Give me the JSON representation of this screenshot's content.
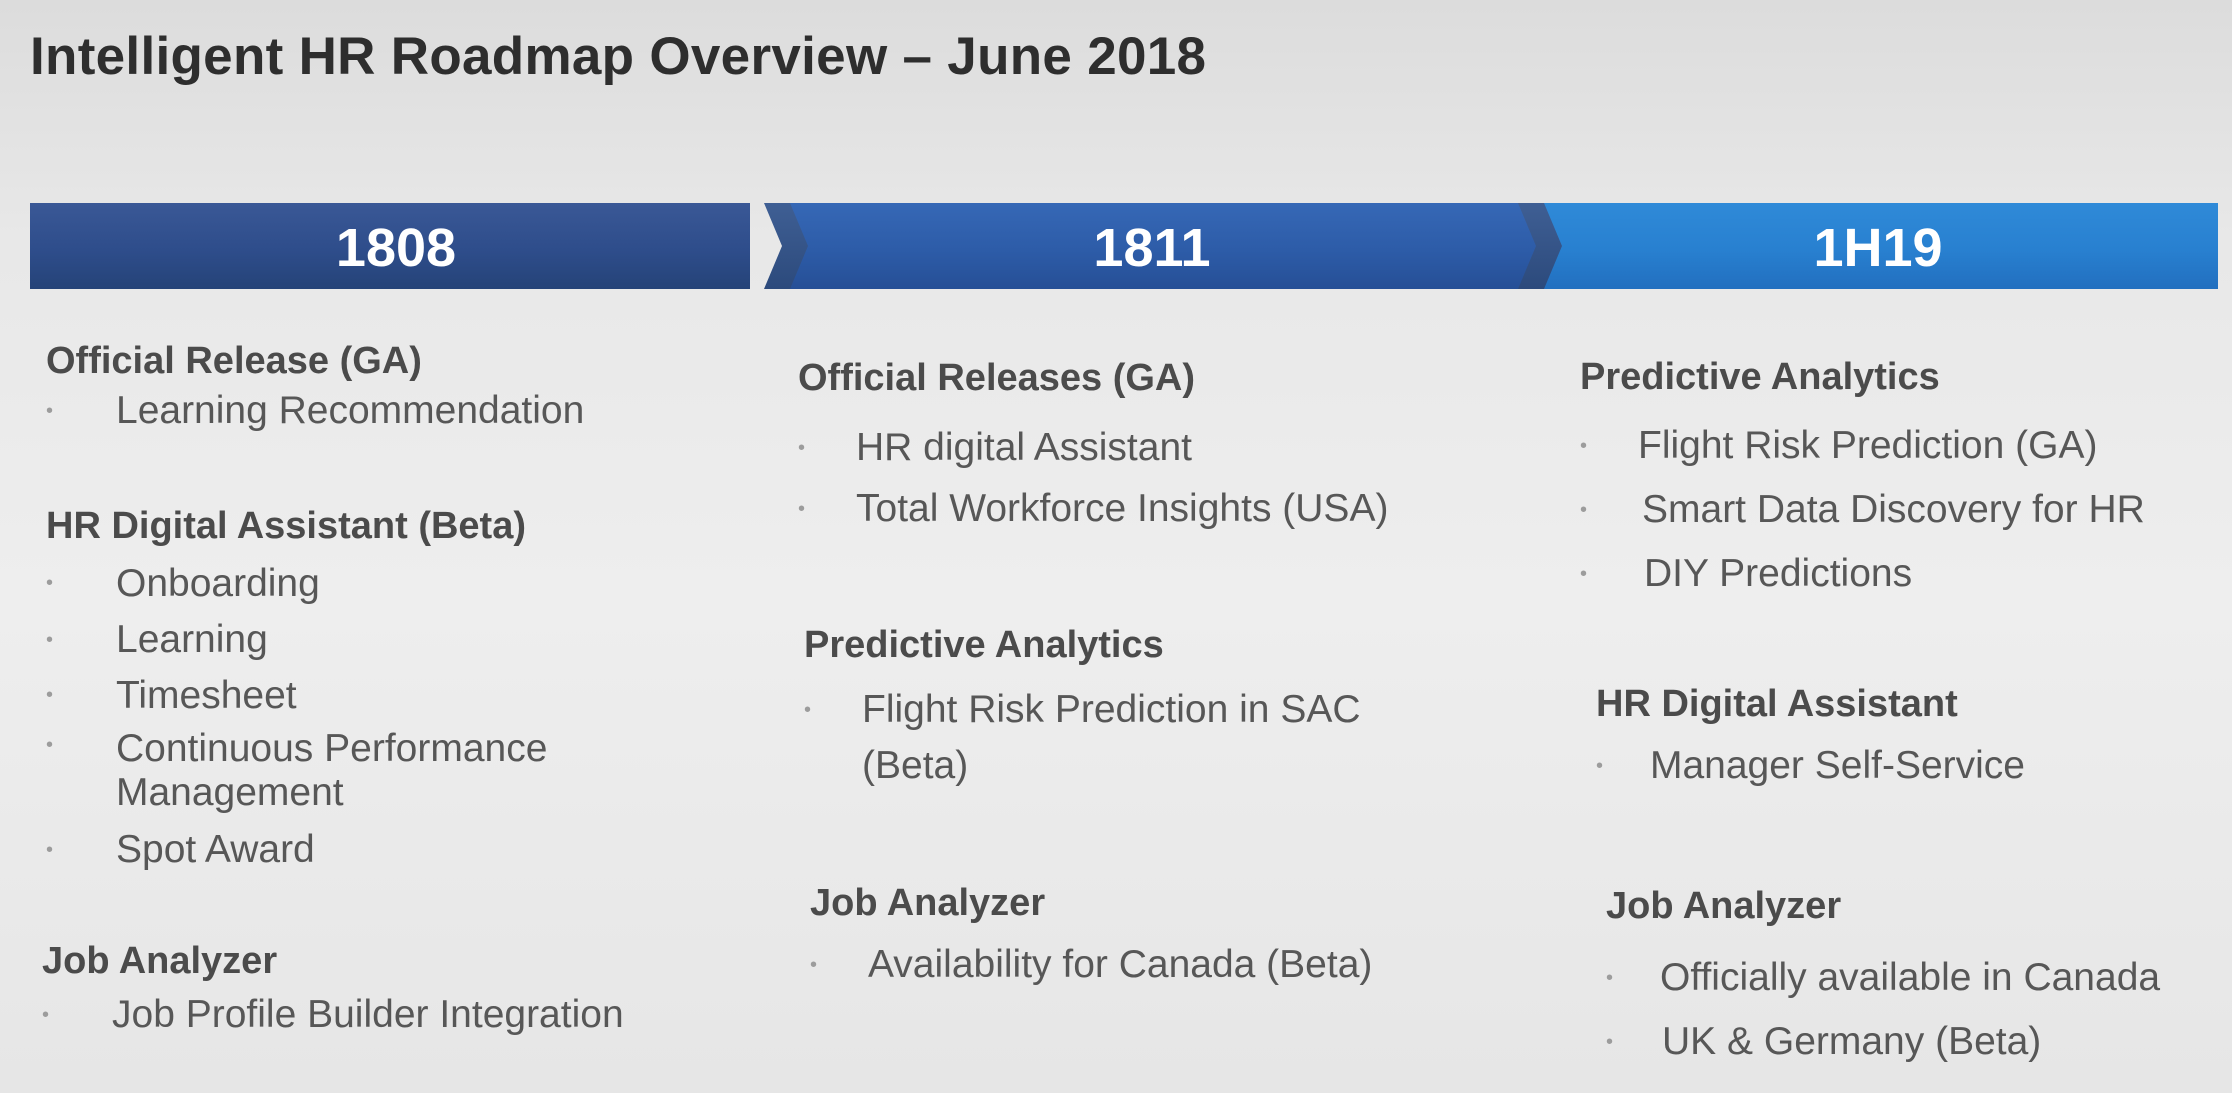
{
  "slide": {
    "title": "Intelligent HR Roadmap Overview – June 2018"
  },
  "timeline": [
    {
      "label": "1808",
      "color": "#2e4d8b",
      "sections": [
        {
          "heading": "Official Release (GA)",
          "items": [
            "Learning Recommendation"
          ]
        },
        {
          "heading": "HR Digital Assistant (Beta)",
          "items": [
            "Onboarding",
            "Learning",
            "Timesheet",
            "Continuous Performance Management",
            "Spot Award"
          ]
        },
        {
          "heading": "Job Analyzer",
          "items": [
            "Job Profile Builder Integration"
          ]
        }
      ]
    },
    {
      "label": "1811",
      "color": "#2d5ca8",
      "sections": [
        {
          "heading": "Official Releases (GA)",
          "items": [
            "HR digital Assistant",
            "Total Workforce Insights (USA)"
          ]
        },
        {
          "heading": "Predictive Analytics",
          "items": [
            "Flight Risk Prediction in SAC (Beta)"
          ]
        },
        {
          "heading": "Job Analyzer",
          "items": [
            "Availability for Canada (Beta)"
          ]
        }
      ]
    },
    {
      "label": "1H19",
      "color": "#2880d0",
      "sections": [
        {
          "heading": "Predictive Analytics",
          "items": [
            "Flight Risk Prediction (GA)",
            "Smart Data Discovery for HR",
            "DIY Predictions"
          ]
        },
        {
          "heading": "HR Digital Assistant",
          "items": [
            "Manager Self-Service"
          ]
        },
        {
          "heading": "Job Analyzer",
          "items": [
            "Officially available in Canada",
            "UK & Germany (Beta)"
          ]
        }
      ]
    }
  ]
}
